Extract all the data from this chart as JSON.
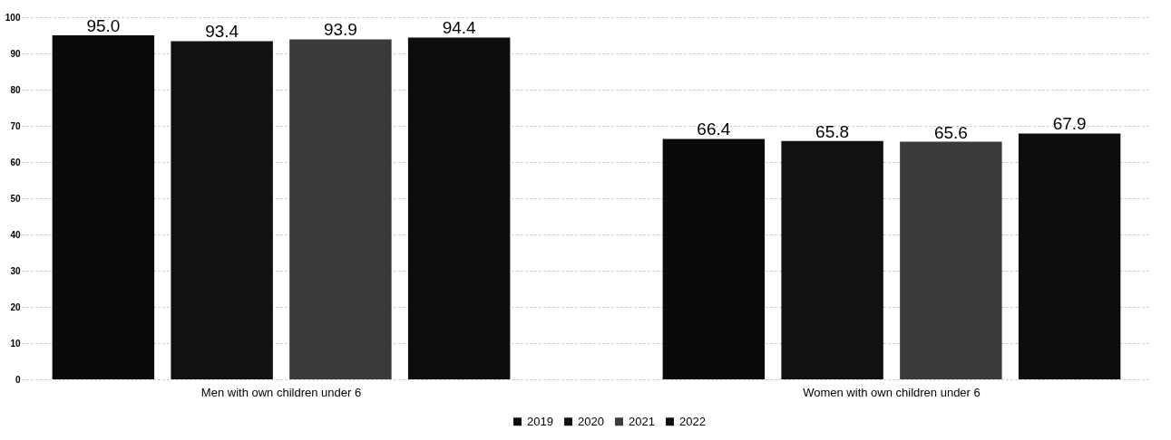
{
  "chart_data": {
    "type": "bar",
    "categories": [
      "Men with own children under 6",
      "Women with own children under 6"
    ],
    "series": [
      {
        "name": "2019",
        "color": "#0a0a0a",
        "values": [
          95.0,
          66.4
        ],
        "value_labels": [
          "95.0",
          "66.4"
        ]
      },
      {
        "name": "2020",
        "color": "#111111",
        "values": [
          93.4,
          65.8
        ],
        "value_labels": [
          "93.4",
          "65.8"
        ]
      },
      {
        "name": "2021",
        "color": "#3a3a3a",
        "values": [
          93.9,
          65.6
        ],
        "value_labels": [
          "93.9",
          "65.6"
        ]
      },
      {
        "name": "2022",
        "color": "#0d0d0d",
        "values": [
          94.4,
          67.9
        ],
        "value_labels": [
          "94.4",
          "67.9"
        ]
      }
    ],
    "ylim": [
      0,
      100
    ],
    "yticks": [
      0,
      10,
      20,
      30,
      40,
      50,
      60,
      70,
      80,
      90,
      100
    ],
    "grid": "y",
    "legend": "bottom"
  }
}
